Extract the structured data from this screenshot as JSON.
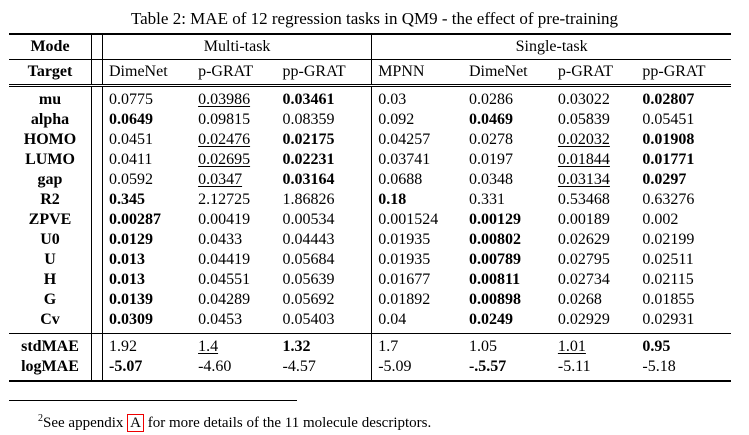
{
  "caption": "Table 2: MAE of 12 regression tasks in QM9 - the effect of pre-training",
  "header": {
    "mode_label": "Mode",
    "multi_label": "Multi-task",
    "single_label": "Single-task",
    "target_label": "Target",
    "columns": [
      "DimeNet",
      "p-GRAT",
      "pp-GRAT",
      "MPNN",
      "DimeNet",
      "p-GRAT",
      "pp-GRAT"
    ]
  },
  "rows": [
    {
      "label": "mu",
      "cells": [
        {
          "v": "0.0775"
        },
        {
          "v": "0.03986",
          "u": true
        },
        {
          "v": "0.03461",
          "b": true
        },
        {
          "v": "0.03"
        },
        {
          "v": "0.0286"
        },
        {
          "v": "0.03022"
        },
        {
          "v": "0.02807",
          "b": true
        }
      ]
    },
    {
      "label": "alpha",
      "cells": [
        {
          "v": "0.0649",
          "b": true
        },
        {
          "v": "0.09815"
        },
        {
          "v": "0.08359"
        },
        {
          "v": "0.092"
        },
        {
          "v": "0.0469",
          "b": true
        },
        {
          "v": "0.05839"
        },
        {
          "v": "0.05451"
        }
      ]
    },
    {
      "label": "HOMO",
      "cells": [
        {
          "v": "0.0451"
        },
        {
          "v": "0.02476",
          "u": true
        },
        {
          "v": "0.02175",
          "b": true
        },
        {
          "v": "0.04257"
        },
        {
          "v": "0.0278"
        },
        {
          "v": "0.02032",
          "u": true
        },
        {
          "v": "0.01908",
          "b": true
        }
      ]
    },
    {
      "label": "LUMO",
      "cells": [
        {
          "v": "0.0411"
        },
        {
          "v": "0.02695",
          "u": true
        },
        {
          "v": "0.02231",
          "b": true
        },
        {
          "v": "0.03741"
        },
        {
          "v": "0.0197"
        },
        {
          "v": "0.01844",
          "u": true
        },
        {
          "v": "0.01771",
          "b": true
        }
      ]
    },
    {
      "label": "gap",
      "cells": [
        {
          "v": "0.0592"
        },
        {
          "v": "0.0347",
          "u": true
        },
        {
          "v": "0.03164",
          "b": true
        },
        {
          "v": "0.0688"
        },
        {
          "v": "0.0348"
        },
        {
          "v": "0.03134",
          "u": true
        },
        {
          "v": "0.0297",
          "b": true
        }
      ]
    },
    {
      "label": "R2",
      "cells": [
        {
          "v": "0.345",
          "b": true
        },
        {
          "v": "2.12725"
        },
        {
          "v": "1.86826"
        },
        {
          "v": "0.18",
          "b": true
        },
        {
          "v": "0.331"
        },
        {
          "v": "0.53468"
        },
        {
          "v": "0.63276"
        }
      ]
    },
    {
      "label": "ZPVE",
      "cells": [
        {
          "v": "0.00287",
          "b": true
        },
        {
          "v": "0.00419"
        },
        {
          "v": "0.00534"
        },
        {
          "v": "0.001524"
        },
        {
          "v": "0.00129",
          "b": true
        },
        {
          "v": "0.00189"
        },
        {
          "v": "0.002"
        }
      ]
    },
    {
      "label": "U0",
      "cells": [
        {
          "v": "0.0129",
          "b": true
        },
        {
          "v": "0.0433"
        },
        {
          "v": "0.04443"
        },
        {
          "v": "0.01935"
        },
        {
          "v": "0.00802",
          "b": true
        },
        {
          "v": "0.02629"
        },
        {
          "v": "0.02199"
        }
      ]
    },
    {
      "label": "U",
      "cells": [
        {
          "v": "0.013",
          "b": true
        },
        {
          "v": "0.04419"
        },
        {
          "v": "0.05684"
        },
        {
          "v": "0.01935"
        },
        {
          "v": "0.00789",
          "b": true
        },
        {
          "v": "0.02795"
        },
        {
          "v": "0.02511"
        }
      ]
    },
    {
      "label": "H",
      "cells": [
        {
          "v": "0.013",
          "b": true
        },
        {
          "v": "0.04551"
        },
        {
          "v": "0.05639"
        },
        {
          "v": "0.01677"
        },
        {
          "v": "0.00811",
          "b": true
        },
        {
          "v": "0.02734"
        },
        {
          "v": "0.02115"
        }
      ]
    },
    {
      "label": "G",
      "cells": [
        {
          "v": "0.0139",
          "b": true
        },
        {
          "v": "0.04289"
        },
        {
          "v": "0.05692"
        },
        {
          "v": "0.01892"
        },
        {
          "v": "0.00898",
          "b": true
        },
        {
          "v": "0.0268"
        },
        {
          "v": "0.01855"
        }
      ]
    },
    {
      "label": "Cv",
      "cells": [
        {
          "v": "0.0309",
          "b": true
        },
        {
          "v": "0.0453"
        },
        {
          "v": "0.05403"
        },
        {
          "v": "0.04"
        },
        {
          "v": "0.0249",
          "b": true
        },
        {
          "v": "0.02929"
        },
        {
          "v": "0.02931"
        }
      ]
    }
  ],
  "summary": [
    {
      "label": "stdMAE",
      "cells": [
        {
          "v": "1.92"
        },
        {
          "v": "1.4",
          "u": true
        },
        {
          "v": "1.32",
          "b": true
        },
        {
          "v": "1.7"
        },
        {
          "v": "1.05"
        },
        {
          "v": "1.01",
          "u": true
        },
        {
          "v": "0.95",
          "b": true
        }
      ]
    },
    {
      "label": "logMAE",
      "cells": [
        {
          "v": "-5.07",
          "b": true
        },
        {
          "v": "-4.60"
        },
        {
          "v": "-4.57"
        },
        {
          "v": "-5.09"
        },
        {
          "v": "-.5.57",
          "b": true
        },
        {
          "v": "-5.11"
        },
        {
          "v": "-5.18"
        }
      ]
    }
  ],
  "footnote": {
    "mark": "2",
    "pre": "See appendix ",
    "link": "A",
    "post": " for more details of the 11 molecule descriptors."
  }
}
